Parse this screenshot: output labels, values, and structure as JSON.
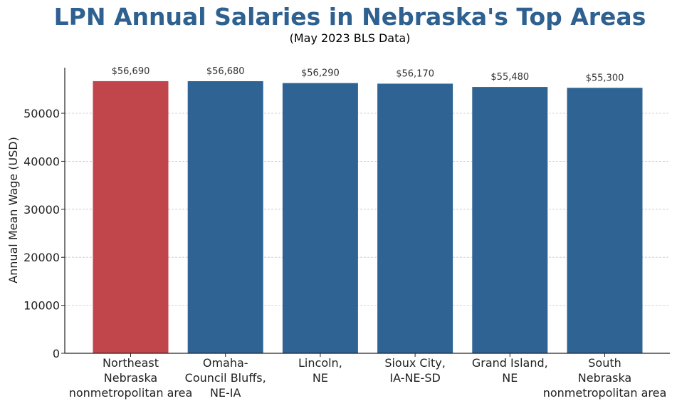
{
  "chart_data": {
    "type": "bar",
    "title": "LPN Annual Salaries in Nebraska's Top Areas",
    "subtitle": "(May 2023 BLS Data)",
    "xlabel": "",
    "ylabel": "Annual Mean Wage (USD)",
    "categories": [
      [
        "Northeast",
        "Nebraska",
        "nonmetropolitan area"
      ],
      [
        "Omaha-",
        "Council Bluffs,",
        "NE-IA"
      ],
      [
        "Lincoln,",
        "NE"
      ],
      [
        "Sioux City,",
        "IA-NE-SD"
      ],
      [
        "Grand Island,",
        "NE"
      ],
      [
        "South",
        "Nebraska",
        "nonmetropolitan area"
      ]
    ],
    "values": [
      56690,
      56680,
      56290,
      56170,
      55480,
      55300
    ],
    "value_labels": [
      "$56,690",
      "$56,680",
      "$56,290",
      "$56,170",
      "$55,480",
      "$55,300"
    ],
    "ylim": [
      0,
      59500
    ],
    "yticks": [
      0,
      10000,
      20000,
      30000,
      40000,
      50000
    ],
    "grid": "y-dashed",
    "colors": {
      "highlight": "#c0464b",
      "bar": "#2e6393",
      "title": "#2e6090"
    }
  }
}
